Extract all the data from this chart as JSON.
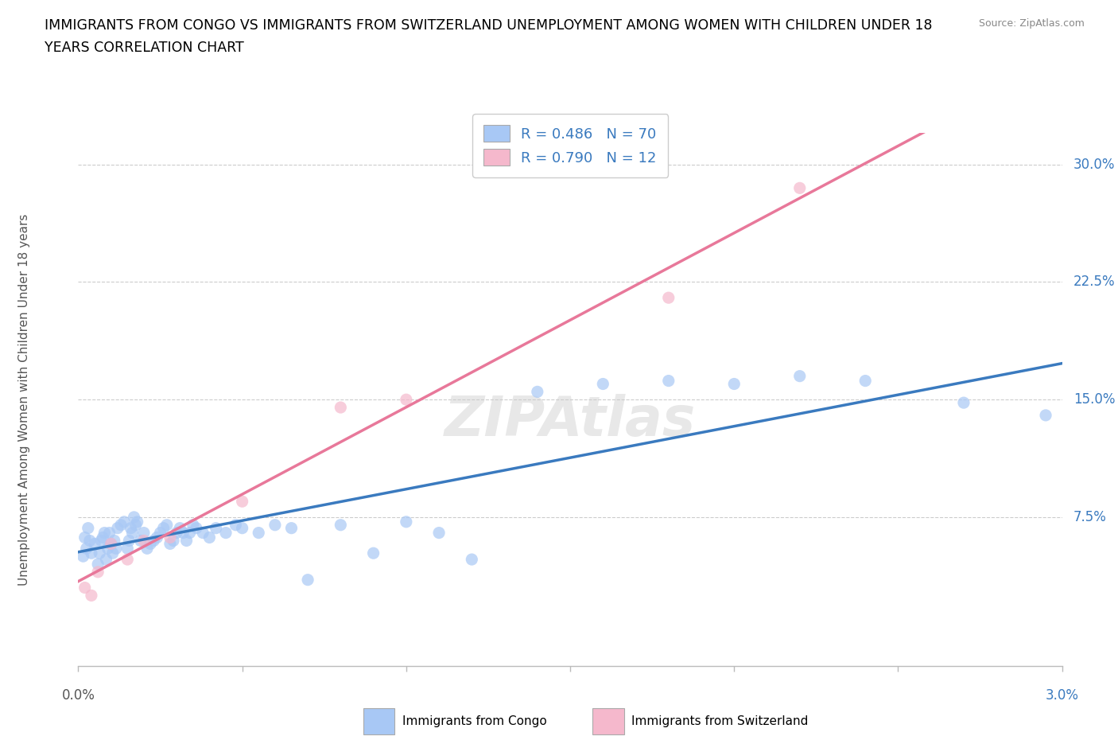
{
  "title": "IMMIGRANTS FROM CONGO VS IMMIGRANTS FROM SWITZERLAND UNEMPLOYMENT AMONG WOMEN WITH CHILDREN UNDER 18\nYEARS CORRELATION CHART",
  "source": "Source: ZipAtlas.com",
  "ylabel_label": "Unemployment Among Women with Children Under 18 years",
  "watermark": "ZIPAtlas",
  "xlim": [
    0.0,
    0.03
  ],
  "ylim": [
    -0.02,
    0.32
  ],
  "yticks": [
    0.075,
    0.15,
    0.225,
    0.3
  ],
  "ytick_labels": [
    "7.5%",
    "15.0%",
    "22.5%",
    "30.0%"
  ],
  "xtick_positions": [
    0.0,
    0.005,
    0.01,
    0.015,
    0.02,
    0.025,
    0.03
  ],
  "congo_color": "#a8c8f5",
  "switzerland_color": "#f5b8cc",
  "congo_line_color": "#3a7abf",
  "switzerland_line_color": "#e8789a",
  "grid_color": "#cccccc",
  "background_color": "#ffffff",
  "R_congo": 0.486,
  "N_congo": 70,
  "R_switzerland": 0.79,
  "N_switzerland": 12,
  "congo_points_x": [
    0.00015,
    0.0002,
    0.00025,
    0.0003,
    0.00035,
    0.0004,
    0.0005,
    0.0006,
    0.00065,
    0.0007,
    0.00075,
    0.0008,
    0.00085,
    0.0009,
    0.00095,
    0.001,
    0.00105,
    0.0011,
    0.00115,
    0.0012,
    0.0013,
    0.0014,
    0.0015,
    0.00155,
    0.0016,
    0.00165,
    0.0017,
    0.00175,
    0.0018,
    0.0019,
    0.002,
    0.0021,
    0.0022,
    0.0023,
    0.0024,
    0.0025,
    0.0026,
    0.0027,
    0.0028,
    0.0029,
    0.003,
    0.0031,
    0.0032,
    0.0033,
    0.0034,
    0.0035,
    0.0036,
    0.0038,
    0.004,
    0.0042,
    0.0045,
    0.0048,
    0.005,
    0.0055,
    0.006,
    0.0065,
    0.007,
    0.008,
    0.009,
    0.01,
    0.011,
    0.012,
    0.014,
    0.016,
    0.018,
    0.02,
    0.022,
    0.024,
    0.027,
    0.0295
  ],
  "congo_points_y": [
    0.05,
    0.062,
    0.055,
    0.068,
    0.06,
    0.052,
    0.058,
    0.045,
    0.052,
    0.06,
    0.062,
    0.065,
    0.048,
    0.055,
    0.065,
    0.058,
    0.052,
    0.06,
    0.055,
    0.068,
    0.07,
    0.072,
    0.055,
    0.06,
    0.068,
    0.065,
    0.075,
    0.07,
    0.072,
    0.06,
    0.065,
    0.055,
    0.058,
    0.06,
    0.062,
    0.065,
    0.068,
    0.07,
    0.058,
    0.06,
    0.065,
    0.068,
    0.065,
    0.06,
    0.065,
    0.07,
    0.068,
    0.065,
    0.062,
    0.068,
    0.065,
    0.07,
    0.068,
    0.065,
    0.07,
    0.068,
    0.035,
    0.07,
    0.052,
    0.072,
    0.065,
    0.048,
    0.155,
    0.16,
    0.162,
    0.16,
    0.165,
    0.162,
    0.148,
    0.14
  ],
  "switzerland_points_x": [
    0.0002,
    0.0004,
    0.0006,
    0.001,
    0.0015,
    0.002,
    0.0028,
    0.005,
    0.008,
    0.01,
    0.018,
    0.022
  ],
  "switzerland_points_y": [
    0.03,
    0.025,
    0.04,
    0.058,
    0.048,
    0.06,
    0.062,
    0.085,
    0.145,
    0.15,
    0.215,
    0.285
  ]
}
